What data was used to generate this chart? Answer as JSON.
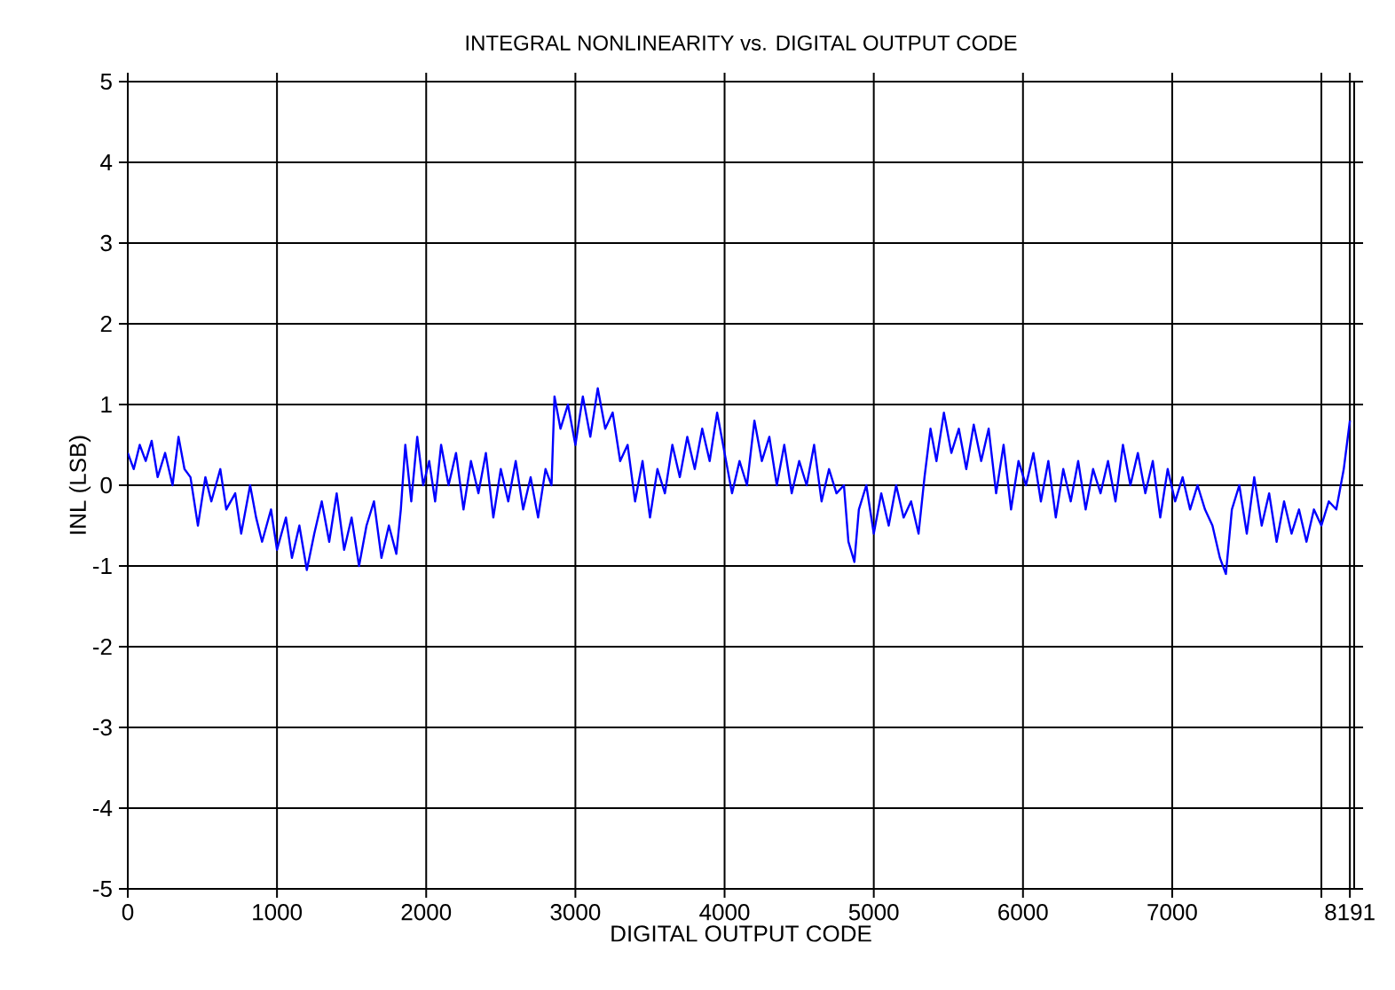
{
  "chart_data": {
    "type": "line",
    "title": "INTEGRAL NONLINEARITY vs. DIGITAL OUTPUT CODE",
    "xlabel": "DIGITAL OUTPUT CODE",
    "ylabel": "INL (LSB)",
    "xlim": [
      0,
      8220
    ],
    "ylim": [
      -5,
      5
    ],
    "xticks": [
      0,
      1000,
      2000,
      3000,
      4000,
      5000,
      6000,
      7000,
      {
        "value": 8000,
        "label": null
      },
      8191
    ],
    "yticks": [
      -5,
      -4,
      -3,
      -2,
      -1,
      0,
      1,
      2,
      3,
      4,
      5
    ],
    "grid": true,
    "marker": "none",
    "line_style": "solid",
    "color": "#0000ff",
    "x": [
      0,
      40,
      80,
      120,
      160,
      200,
      250,
      300,
      340,
      380,
      420,
      470,
      520,
      560,
      620,
      660,
      720,
      760,
      820,
      860,
      900,
      960,
      1000,
      1060,
      1100,
      1150,
      1200,
      1250,
      1300,
      1350,
      1400,
      1450,
      1500,
      1550,
      1600,
      1650,
      1700,
      1750,
      1800,
      1830,
      1860,
      1900,
      1940,
      1980,
      2020,
      2060,
      2100,
      2150,
      2200,
      2250,
      2300,
      2350,
      2400,
      2450,
      2500,
      2550,
      2600,
      2650,
      2700,
      2750,
      2800,
      2840,
      2860,
      2900,
      2950,
      3000,
      3050,
      3100,
      3150,
      3200,
      3250,
      3300,
      3350,
      3400,
      3450,
      3500,
      3550,
      3600,
      3650,
      3700,
      3750,
      3800,
      3850,
      3900,
      3950,
      4000,
      4050,
      4100,
      4150,
      4200,
      4250,
      4300,
      4350,
      4400,
      4450,
      4500,
      4550,
      4600,
      4650,
      4700,
      4750,
      4800,
      4830,
      4870,
      4900,
      4950,
      5000,
      5050,
      5100,
      5150,
      5200,
      5250,
      5300,
      5340,
      5380,
      5420,
      5470,
      5520,
      5570,
      5620,
      5670,
      5720,
      5770,
      5820,
      5870,
      5920,
      5970,
      6020,
      6070,
      6120,
      6170,
      6220,
      6270,
      6320,
      6370,
      6420,
      6470,
      6520,
      6570,
      6620,
      6670,
      6720,
      6770,
      6820,
      6870,
      6920,
      6970,
      7020,
      7070,
      7120,
      7170,
      7220,
      7270,
      7320,
      7360,
      7400,
      7450,
      7500,
      7550,
      7600,
      7650,
      7700,
      7750,
      7800,
      7850,
      7900,
      7950,
      8000,
      8050,
      8100,
      8150,
      8191
    ],
    "values": [
      0.4,
      0.2,
      0.5,
      0.3,
      0.55,
      0.1,
      0.4,
      0.0,
      0.6,
      0.2,
      0.1,
      -0.5,
      0.1,
      -0.2,
      0.2,
      -0.3,
      -0.1,
      -0.6,
      0.0,
      -0.4,
      -0.7,
      -0.3,
      -0.8,
      -0.4,
      -0.9,
      -0.5,
      -1.05,
      -0.6,
      -0.2,
      -0.7,
      -0.1,
      -0.8,
      -0.4,
      -1.0,
      -0.5,
      -0.2,
      -0.9,
      -0.5,
      -0.85,
      -0.3,
      0.5,
      -0.2,
      0.6,
      0.0,
      0.3,
      -0.2,
      0.5,
      0.0,
      0.4,
      -0.3,
      0.3,
      -0.1,
      0.4,
      -0.4,
      0.2,
      -0.2,
      0.3,
      -0.3,
      0.1,
      -0.4,
      0.2,
      0.0,
      1.1,
      0.7,
      1.0,
      0.5,
      1.1,
      0.6,
      1.2,
      0.7,
      0.9,
      0.3,
      0.5,
      -0.2,
      0.3,
      -0.4,
      0.2,
      -0.1,
      0.5,
      0.1,
      0.6,
      0.2,
      0.7,
      0.3,
      0.9,
      0.4,
      -0.1,
      0.3,
      0.0,
      0.8,
      0.3,
      0.6,
      0.0,
      0.5,
      -0.1,
      0.3,
      0.0,
      0.5,
      -0.2,
      0.2,
      -0.1,
      0.0,
      -0.7,
      -0.95,
      -0.3,
      0.0,
      -0.6,
      -0.1,
      -0.5,
      0.0,
      -0.4,
      -0.2,
      -0.6,
      0.1,
      0.7,
      0.3,
      0.9,
      0.4,
      0.7,
      0.2,
      0.75,
      0.3,
      0.7,
      -0.1,
      0.5,
      -0.3,
      0.3,
      0.0,
      0.4,
      -0.2,
      0.3,
      -0.4,
      0.2,
      -0.2,
      0.3,
      -0.3,
      0.2,
      -0.1,
      0.3,
      -0.2,
      0.5,
      0.0,
      0.4,
      -0.1,
      0.3,
      -0.4,
      0.2,
      -0.2,
      0.1,
      -0.3,
      0.0,
      -0.3,
      -0.5,
      -0.9,
      -1.1,
      -0.3,
      0.0,
      -0.6,
      0.1,
      -0.5,
      -0.1,
      -0.7,
      -0.2,
      -0.6,
      -0.3,
      -0.7,
      -0.3,
      -0.5,
      -0.2,
      -0.3,
      0.2,
      0.8
    ]
  }
}
